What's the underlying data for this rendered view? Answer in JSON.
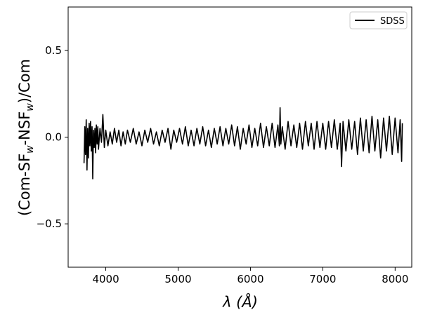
{
  "chart_data": {
    "type": "line",
    "title": "",
    "xlabel": "λ (Å)",
    "ylabel": "(Com-SF_w-NSF_w)/Com",
    "ylabel_parts": {
      "p1": "(Com-SF",
      "sub1": "w",
      "p2": "-NSF",
      "sub2": "w",
      "p3": ")/Com"
    },
    "xlim": [
      3480,
      8230
    ],
    "ylim": [
      -0.75,
      0.75
    ],
    "xticks": [
      4000,
      5000,
      6000,
      7000,
      8000
    ],
    "xtick_labels": [
      "4000",
      "5000",
      "6000",
      "7000",
      "8000"
    ],
    "yticks": [
      0.5,
      0.0,
      -0.5
    ],
    "ytick_labels": [
      "0.5",
      "0.0",
      "−0.5"
    ],
    "grid": false,
    "legend": {
      "position": "upper right",
      "entries": [
        "SDSS"
      ]
    },
    "series": [
      {
        "name": "SDSS",
        "color": "#000000",
        "x": [
          3700,
          3710,
          3720,
          3730,
          3740,
          3750,
          3760,
          3770,
          3780,
          3790,
          3800,
          3810,
          3820,
          3830,
          3840,
          3850,
          3860,
          3870,
          3880,
          3890,
          3900,
          3920,
          3940,
          3960,
          3980,
          4000,
          4030,
          4060,
          4090,
          4120,
          4150,
          4180,
          4210,
          4240,
          4270,
          4300,
          4340,
          4380,
          4420,
          4460,
          4500,
          4540,
          4580,
          4620,
          4660,
          4700,
          4740,
          4780,
          4820,
          4860,
          4900,
          4940,
          4980,
          5020,
          5060,
          5100,
          5140,
          5180,
          5220,
          5260,
          5300,
          5340,
          5380,
          5420,
          5460,
          5500,
          5540,
          5580,
          5620,
          5660,
          5700,
          5740,
          5780,
          5820,
          5860,
          5900,
          5940,
          5980,
          6020,
          6060,
          6100,
          6140,
          6180,
          6220,
          6260,
          6300,
          6340,
          6380,
          6400,
          6410,
          6420,
          6440,
          6480,
          6520,
          6560,
          6600,
          6640,
          6680,
          6720,
          6760,
          6800,
          6840,
          6880,
          6920,
          6960,
          7000,
          7040,
          7080,
          7120,
          7160,
          7200,
          7240,
          7260,
          7280,
          7320,
          7360,
          7400,
          7440,
          7480,
          7520,
          7560,
          7600,
          7640,
          7680,
          7720,
          7760,
          7800,
          7840,
          7880,
          7920,
          7960,
          8000,
          8040,
          8070,
          8090,
          8100
        ],
        "y": [
          -0.15,
          0.06,
          -0.1,
          0.1,
          -0.19,
          0.05,
          -0.12,
          0.08,
          -0.05,
          0.09,
          -0.08,
          0.06,
          -0.24,
          0.04,
          -0.06,
          0.05,
          -0.09,
          0.07,
          -0.04,
          0.06,
          -0.07,
          0.05,
          -0.03,
          0.13,
          -0.06,
          0.04,
          -0.05,
          0.03,
          -0.04,
          0.05,
          -0.03,
          0.04,
          -0.05,
          0.03,
          -0.04,
          0.04,
          -0.03,
          0.05,
          -0.04,
          0.03,
          -0.05,
          0.04,
          -0.03,
          0.05,
          -0.04,
          0.03,
          -0.05,
          0.04,
          -0.03,
          0.05,
          -0.07,
          0.04,
          -0.03,
          0.05,
          -0.04,
          0.06,
          -0.05,
          0.04,
          -0.05,
          0.05,
          -0.04,
          0.06,
          -0.05,
          0.04,
          -0.06,
          0.05,
          -0.04,
          0.06,
          -0.05,
          0.05,
          -0.04,
          0.07,
          -0.05,
          0.06,
          -0.07,
          0.05,
          -0.04,
          0.07,
          -0.06,
          0.05,
          -0.05,
          0.08,
          -0.06,
          0.06,
          -0.05,
          0.08,
          -0.06,
          0.07,
          -0.05,
          0.17,
          -0.04,
          0.06,
          -0.07,
          0.09,
          -0.05,
          0.07,
          -0.06,
          0.08,
          -0.07,
          0.09,
          -0.05,
          0.08,
          -0.07,
          0.09,
          -0.06,
          0.08,
          -0.07,
          0.09,
          -0.06,
          0.1,
          -0.07,
          0.08,
          -0.17,
          0.09,
          -0.08,
          0.1,
          -0.07,
          0.09,
          -0.1,
          0.11,
          -0.08,
          0.1,
          -0.09,
          0.12,
          -0.08,
          0.1,
          -0.12,
          0.11,
          -0.08,
          0.12,
          -0.1,
          0.11,
          -0.09,
          0.1,
          -0.14,
          0.08
        ]
      }
    ]
  }
}
